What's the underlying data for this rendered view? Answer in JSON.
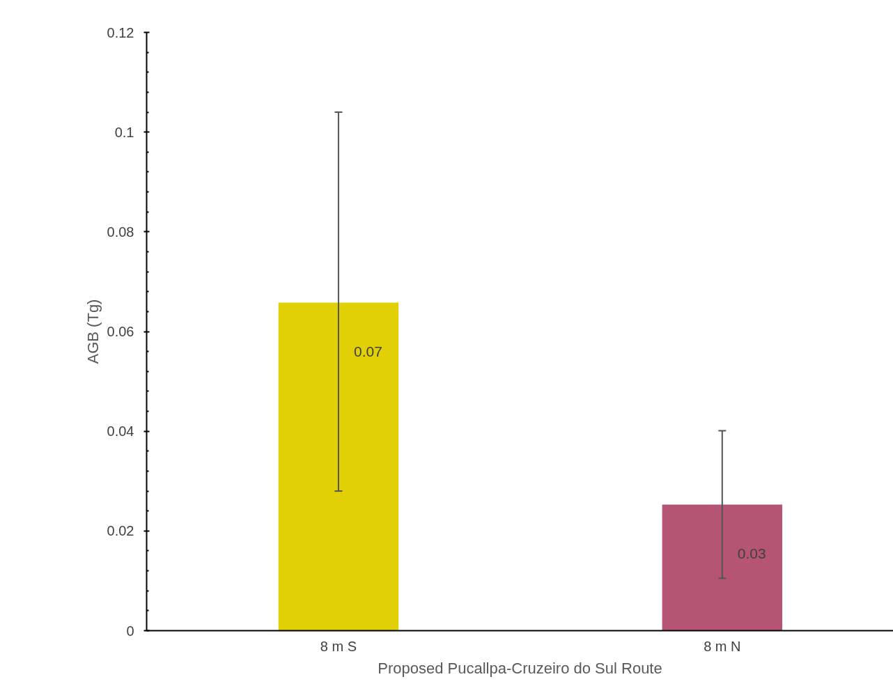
{
  "chart_data": {
    "type": "bar",
    "xlabel": "Proposed Pucallpa-Cruzeiro do Sul Route",
    "ylabel": "AGB (Tg)",
    "categories": [
      "8 m S",
      "8 m N"
    ],
    "values": [
      0.0658,
      0.0253
    ],
    "colors": [
      "#e0d005",
      "#b55573"
    ],
    "errors": [
      [
        0.028,
        0.104
      ],
      [
        0.0105,
        0.0401
      ]
    ],
    "value_labels": [
      "0.07",
      "0.03"
    ],
    "ylim": [
      0,
      0.12
    ],
    "yticks": [
      0,
      0.02,
      0.04,
      0.06,
      0.08,
      {
        "value": 0.1,
        "label": "0.1"
      },
      0.12
    ],
    "grid": false
  }
}
